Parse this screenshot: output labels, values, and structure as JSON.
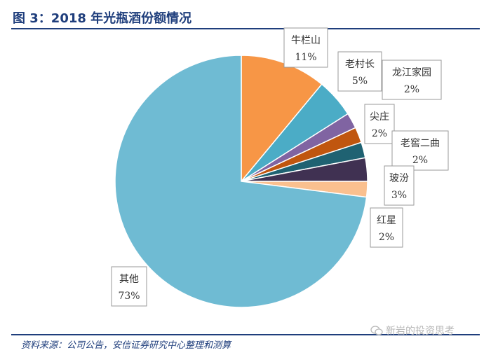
{
  "header": {
    "title": "图 3：2018 年光瓶酒份额情况"
  },
  "chart_data": {
    "type": "pie",
    "title": "",
    "slices": [
      {
        "label": "牛栏山",
        "value": 11,
        "display": "11%",
        "color": "#f79646"
      },
      {
        "label": "老村长",
        "value": 5,
        "display": "5%",
        "color": "#4bacc6"
      },
      {
        "label": "龙江家园",
        "value": 2,
        "display": "2%",
        "color": "#8064a2"
      },
      {
        "label": "尖庄",
        "value": 2,
        "display": "2%",
        "color": "#c0560f"
      },
      {
        "label": "老窖二曲",
        "value": 2,
        "display": "2%",
        "color": "#1f6272"
      },
      {
        "label": "玻汾",
        "value": 3,
        "display": "3%",
        "color": "#403152"
      },
      {
        "label": "红星",
        "value": 2,
        "display": "2%",
        "color": "#fac08f"
      },
      {
        "label": "其他",
        "value": 73,
        "display": "73%",
        "color": "#6fbbd3"
      }
    ],
    "start_angle_deg": 0,
    "direction": "clockwise",
    "legend": "none"
  },
  "footer": {
    "source": "资料来源：公司公告，安信证券研究中心整理和测算"
  },
  "watermark": {
    "text": "新岩的投资思考",
    "icon": "wechat-icon"
  }
}
